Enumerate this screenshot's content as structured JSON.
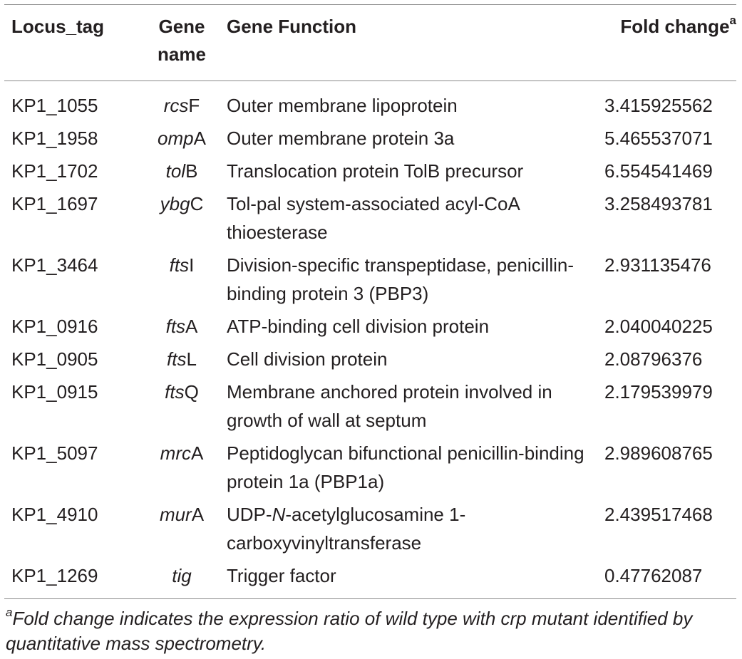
{
  "table": {
    "headers": {
      "locus": "Locus_tag",
      "gene_line1": "Gene",
      "gene_line2": "name",
      "function": "Gene Function",
      "fold": "Fold change",
      "fold_sup": "a"
    },
    "rows": [
      {
        "locus": "KP1_1055",
        "gene_it": "rcs",
        "gene_rest": "F",
        "func": "Outer membrane lipoprotein",
        "func_it": "",
        "func_tail": "",
        "fold": "3.415925562"
      },
      {
        "locus": "KP1_1958",
        "gene_it": "omp",
        "gene_rest": "A",
        "func": "Outer membrane protein 3a",
        "func_it": "",
        "func_tail": "",
        "fold": "5.465537071"
      },
      {
        "locus": "KP1_1702",
        "gene_it": "tol",
        "gene_rest": "B",
        "func": "Translocation protein TolB precursor",
        "func_it": "",
        "func_tail": "",
        "fold": "6.554541469"
      },
      {
        "locus": "KP1_1697",
        "gene_it": "ybg",
        "gene_rest": "C",
        "func": "Tol-pal system-associated acyl-CoA thioesterase",
        "func_it": "",
        "func_tail": "",
        "fold": "3.258493781"
      },
      {
        "locus": "KP1_3464",
        "gene_it": "fts",
        "gene_rest": "I",
        "func": "Division-specific transpeptidase, penicillin-binding protein 3 (PBP3)",
        "func_it": "",
        "func_tail": "",
        "fold": "2.931135476"
      },
      {
        "locus": "KP1_0916",
        "gene_it": "fts",
        "gene_rest": "A",
        "func": "ATP-binding cell division protein",
        "func_it": "",
        "func_tail": "",
        "fold": "2.040040225"
      },
      {
        "locus": "KP1_0905",
        "gene_it": "fts",
        "gene_rest": "L",
        "func": "Cell division protein",
        "func_it": "",
        "func_tail": "",
        "fold": "2.08796376"
      },
      {
        "locus": "KP1_0915",
        "gene_it": "fts",
        "gene_rest": "Q",
        "func": "Membrane anchored protein involved in growth of wall at septum",
        "func_it": "",
        "func_tail": "",
        "fold": "2.179539979"
      },
      {
        "locus": "KP1_5097",
        "gene_it": "mrc",
        "gene_rest": "A",
        "func": "Peptidoglycan bifunctional penicillin-binding protein 1a (PBP1a)",
        "func_it": "",
        "func_tail": "",
        "fold": "2.989608765"
      },
      {
        "locus": "KP1_4910",
        "gene_it": "mur",
        "gene_rest": "A",
        "func": "UDP-",
        "func_it": "N",
        "func_tail": "-acetylglucosamine 1-carboxyvinyltransferase",
        "fold": "2.439517468"
      },
      {
        "locus": "KP1_1269",
        "gene_it": "tig",
        "gene_rest": "",
        "func": "Trigger factor",
        "func_it": "",
        "func_tail": "",
        "fold": "0.47762087"
      }
    ],
    "footnote": {
      "marker": "a",
      "text": "Fold change indicates the expression ratio of wild type with crp mutant identified by quantitative mass spectrometry."
    }
  }
}
